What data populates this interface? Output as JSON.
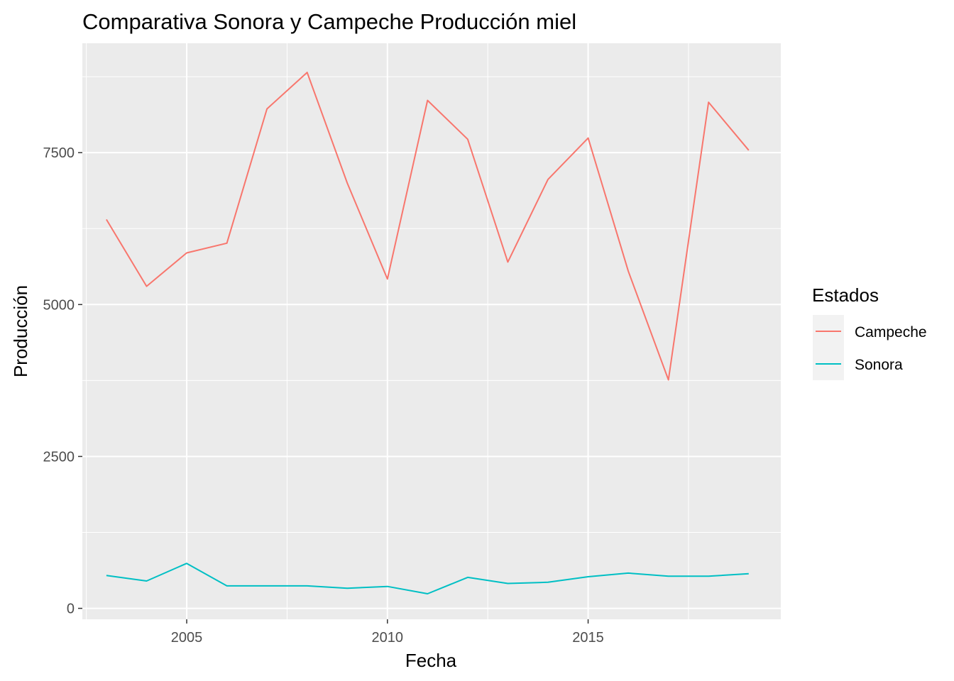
{
  "chart_data": {
    "type": "line",
    "title": "Comparativa Sonora y Campeche Producción miel",
    "xlabel": "Fecha",
    "ylabel": "Producción",
    "x": [
      2003,
      2004,
      2005,
      2006,
      2007,
      2008,
      2009,
      2010,
      2011,
      2012,
      2013,
      2014,
      2015,
      2016,
      2017,
      2018,
      2019
    ],
    "xlim": [
      2002.4,
      2019.8
    ],
    "ylim": [
      -180,
      9300
    ],
    "x_ticks": [
      2005,
      2010,
      2015
    ],
    "y_ticks": [
      0,
      2500,
      5000,
      7500
    ],
    "x_tick_labels": [
      "2005",
      "2010",
      "2015"
    ],
    "y_tick_labels": [
      "0",
      "2500",
      "5000",
      "7500"
    ],
    "grid": true,
    "legend": {
      "title": "Estados",
      "position": "right"
    },
    "series": [
      {
        "name": "Campeche",
        "color": "#F8766D",
        "values": [
          6400,
          5300,
          5850,
          6010,
          8220,
          8820,
          7000,
          5420,
          8360,
          7720,
          5700,
          7060,
          7740,
          5550,
          3760,
          8330,
          7540
        ]
      },
      {
        "name": "Sonora",
        "color": "#00BFC4",
        "values": [
          540,
          450,
          740,
          370,
          370,
          370,
          330,
          360,
          240,
          510,
          410,
          430,
          520,
          580,
          530,
          530,
          570
        ]
      }
    ]
  }
}
